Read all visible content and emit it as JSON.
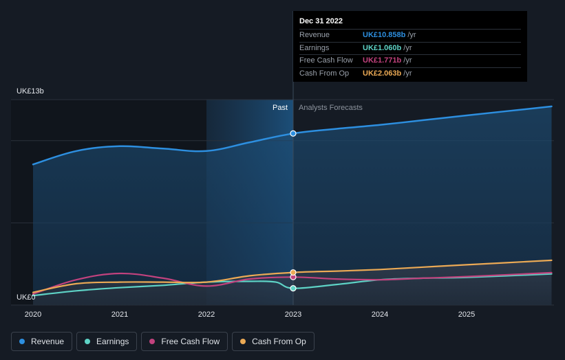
{
  "chart_data": {
    "type": "line",
    "x_axis": {
      "ticks": [
        "2020",
        "2021",
        "2022",
        "2023",
        "2024",
        "2025"
      ],
      "range": [
        2019.75,
        2025.98
      ]
    },
    "y_axis": {
      "range": [
        0,
        13
      ],
      "top_label": "UK£13b",
      "bottom_label": "UK£0",
      "gridlines": [
        0,
        5.2,
        10.4,
        13
      ]
    },
    "divider_x": 2023.0,
    "past_label": "Past",
    "forecast_label": "Analysts Forecasts",
    "past_band_start": 2022.0,
    "series": [
      {
        "name": "Revenue",
        "color": "#2d8fe0",
        "points": [
          [
            2020.0,
            8.9
          ],
          [
            2020.5,
            9.75
          ],
          [
            2021.0,
            10.05
          ],
          [
            2021.5,
            9.9
          ],
          [
            2022.0,
            9.75
          ],
          [
            2022.5,
            10.3
          ],
          [
            2023.0,
            10.858
          ],
          [
            2023.5,
            11.15
          ],
          [
            2024.0,
            11.4
          ],
          [
            2024.5,
            11.7
          ],
          [
            2025.0,
            12.0
          ],
          [
            2025.98,
            12.57
          ]
        ]
      },
      {
        "name": "Earnings",
        "color": "#5ed3c6",
        "points": [
          [
            2020.0,
            0.6
          ],
          [
            2020.5,
            0.9
          ],
          [
            2021.0,
            1.1
          ],
          [
            2021.5,
            1.25
          ],
          [
            2022.0,
            1.45
          ],
          [
            2022.5,
            1.5
          ],
          [
            2022.8,
            1.45
          ],
          [
            2023.0,
            1.06
          ],
          [
            2023.5,
            1.3
          ],
          [
            2024.0,
            1.6
          ],
          [
            2024.5,
            1.7
          ],
          [
            2025.0,
            1.75
          ],
          [
            2025.98,
            1.97
          ]
        ]
      },
      {
        "name": "Free Cash Flow",
        "color": "#c2427e",
        "points": [
          [
            2020.0,
            0.7
          ],
          [
            2020.5,
            1.6
          ],
          [
            2021.0,
            2.0
          ],
          [
            2021.5,
            1.7
          ],
          [
            2022.0,
            1.2
          ],
          [
            2022.5,
            1.65
          ],
          [
            2023.0,
            1.771
          ],
          [
            2023.5,
            1.65
          ],
          [
            2024.0,
            1.6
          ],
          [
            2024.5,
            1.7
          ],
          [
            2025.0,
            1.8
          ],
          [
            2025.98,
            2.05
          ]
        ]
      },
      {
        "name": "Cash From Op",
        "color": "#ecaa55",
        "points": [
          [
            2020.0,
            0.8
          ],
          [
            2020.5,
            1.35
          ],
          [
            2021.0,
            1.45
          ],
          [
            2021.5,
            1.45
          ],
          [
            2022.0,
            1.45
          ],
          [
            2022.5,
            1.85
          ],
          [
            2023.0,
            2.063
          ],
          [
            2023.5,
            2.15
          ],
          [
            2024.0,
            2.25
          ],
          [
            2024.5,
            2.4
          ],
          [
            2025.0,
            2.55
          ],
          [
            2025.98,
            2.83
          ]
        ]
      }
    ]
  },
  "tooltip": {
    "date": "Dec 31 2022",
    "unit": "/yr",
    "rows": [
      {
        "label": "Revenue",
        "value": "UK£10.858b",
        "color": "#2d8fe0"
      },
      {
        "label": "Earnings",
        "value": "UK£1.060b",
        "color": "#5ed3c6"
      },
      {
        "label": "Free Cash Flow",
        "value": "UK£1.771b",
        "color": "#c2427e"
      },
      {
        "label": "Cash From Op",
        "value": "UK£2.063b",
        "color": "#ecaa55"
      }
    ]
  },
  "legend": [
    {
      "label": "Revenue",
      "color": "#2d8fe0"
    },
    {
      "label": "Earnings",
      "color": "#5ed3c6"
    },
    {
      "label": "Free Cash Flow",
      "color": "#c2427e"
    },
    {
      "label": "Cash From Op",
      "color": "#ecaa55"
    }
  ]
}
